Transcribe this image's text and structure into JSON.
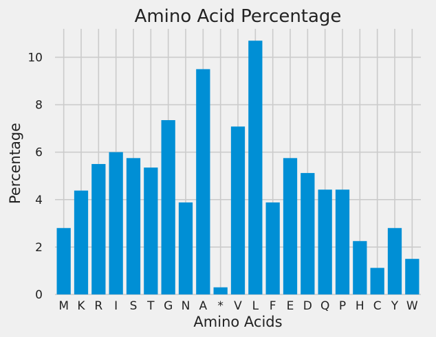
{
  "chart_data": {
    "type": "bar",
    "title": "Amino Acid Percentage",
    "xlabel": "Amino Acids",
    "ylabel": "Percentage",
    "categories": [
      "M",
      "K",
      "R",
      "I",
      "S",
      "T",
      "G",
      "N",
      "A",
      "*",
      "V",
      "L",
      "F",
      "E",
      "D",
      "Q",
      "P",
      "H",
      "C",
      "Y",
      "W"
    ],
    "values": [
      2.8,
      4.38,
      5.5,
      6.0,
      5.75,
      5.35,
      7.35,
      3.88,
      9.5,
      0.3,
      7.08,
      10.7,
      3.88,
      5.75,
      5.12,
      4.42,
      4.42,
      2.25,
      1.12,
      2.8,
      1.5
    ],
    "ylim": [
      0,
      11.2
    ],
    "yticks": [
      0,
      2,
      4,
      6,
      8,
      10
    ],
    "grid": true,
    "bar_color": "#008fd5",
    "grid_color": "#cbcbcb",
    "background": "#f0f0f0"
  }
}
